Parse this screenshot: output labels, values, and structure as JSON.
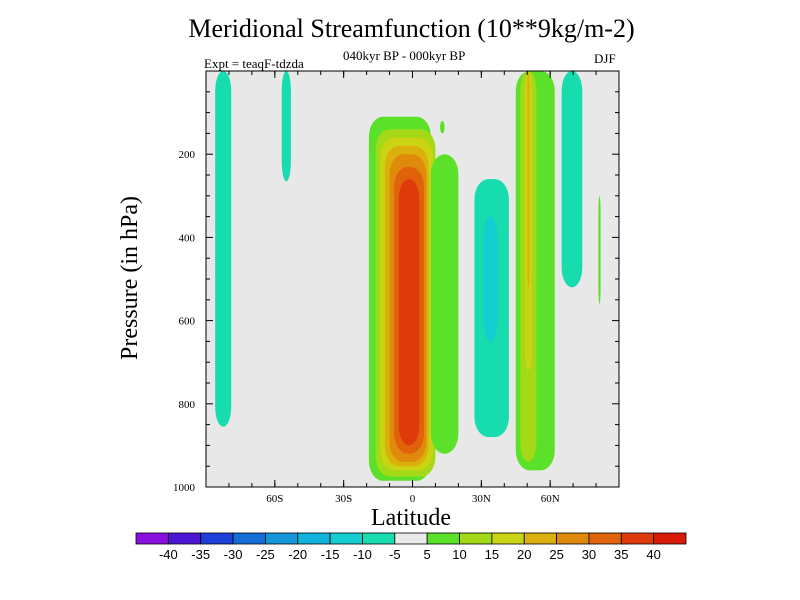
{
  "chart_data": {
    "type": "heatmap",
    "title": "Meridional Streamfunction (10**9kg/m-2)",
    "subtitle": "040kyr BP - 000kyr BP",
    "left_label": "Expt = teaqF-tdzda",
    "right_label": "DJF",
    "xlabel": "Latitude",
    "ylabel": "Pressure (in hPa)",
    "xlim": [
      -90,
      90
    ],
    "ylim": [
      0,
      1000
    ],
    "x_ticks": [
      {
        "value": -60,
        "label": "60S"
      },
      {
        "value": -30,
        "label": "30S"
      },
      {
        "value": 0,
        "label": "0"
      },
      {
        "value": 30,
        "label": "30N"
      },
      {
        "value": 60,
        "label": "60N"
      }
    ],
    "y_ticks": [
      {
        "value": 200,
        "label": "200"
      },
      {
        "value": 400,
        "label": "400"
      },
      {
        "value": 600,
        "label": "600"
      },
      {
        "value": 800,
        "label": "800"
      },
      {
        "value": 1000,
        "label": "1000"
      }
    ],
    "contour_levels": [
      -40,
      -35,
      -30,
      -25,
      -20,
      -15,
      -10,
      -5,
      5,
      10,
      15,
      20,
      25,
      30,
      35,
      40
    ],
    "colorbar_colors": [
      "#8a0fde",
      "#4b16d6",
      "#1e3fd9",
      "#156ed8",
      "#1596d6",
      "#11b3dd",
      "#14cdd0",
      "#16dcae",
      "#eaeaea",
      "#5be12a",
      "#a3d917",
      "#cad412",
      "#dcb00c",
      "#e08a0b",
      "#e0620b",
      "#de3a0c",
      "#d81a08"
    ],
    "cells": [
      {
        "x0": -86,
        "x1": -79,
        "p0": 0,
        "p1": 855,
        "value": -8
      },
      {
        "x0": -57,
        "x1": -53,
        "p0": 0,
        "p1": 265,
        "value": -8
      },
      {
        "x0": -19,
        "x1": 8,
        "p0": 110,
        "p1": 985,
        "value": 7
      },
      {
        "x0": -16,
        "x1": 10,
        "p0": 140,
        "p1": 975,
        "value": 12
      },
      {
        "x0": -14,
        "x1": 9,
        "p0": 160,
        "p1": 960,
        "value": 17
      },
      {
        "x0": -12,
        "x1": 7,
        "p0": 180,
        "p1": 950,
        "value": 22
      },
      {
        "x0": -10,
        "x1": 6,
        "p0": 200,
        "p1": 940,
        "value": 27
      },
      {
        "x0": -8,
        "x1": 5,
        "p0": 230,
        "p1": 920,
        "value": 32
      },
      {
        "x0": -6,
        "x1": 3,
        "p0": 260,
        "p1": 900,
        "value": 37
      },
      {
        "x0": 8,
        "x1": 20,
        "p0": 200,
        "p1": 920,
        "value": 7
      },
      {
        "x0": 12,
        "x1": 14,
        "p0": 120,
        "p1": 150,
        "value": 7
      },
      {
        "x0": 27,
        "x1": 42,
        "p0": 260,
        "p1": 880,
        "value": -8
      },
      {
        "x0": 31,
        "x1": 37,
        "p0": 350,
        "p1": 650,
        "value": -12
      },
      {
        "x0": 45,
        "x1": 62,
        "p0": 0,
        "p1": 960,
        "value": 7
      },
      {
        "x0": 47,
        "x1": 54,
        "p0": 0,
        "p1": 940,
        "value": 12
      },
      {
        "x0": 49,
        "x1": 52,
        "p0": 0,
        "p1": 720,
        "value": 17
      },
      {
        "x0": 50,
        "x1": 51,
        "p0": 0,
        "p1": 520,
        "value": 22
      },
      {
        "x0": 65,
        "x1": 74,
        "p0": 0,
        "p1": 520,
        "value": -8
      },
      {
        "x0": 81,
        "x1": 82,
        "p0": 300,
        "p1": 560,
        "value": 7
      }
    ]
  }
}
